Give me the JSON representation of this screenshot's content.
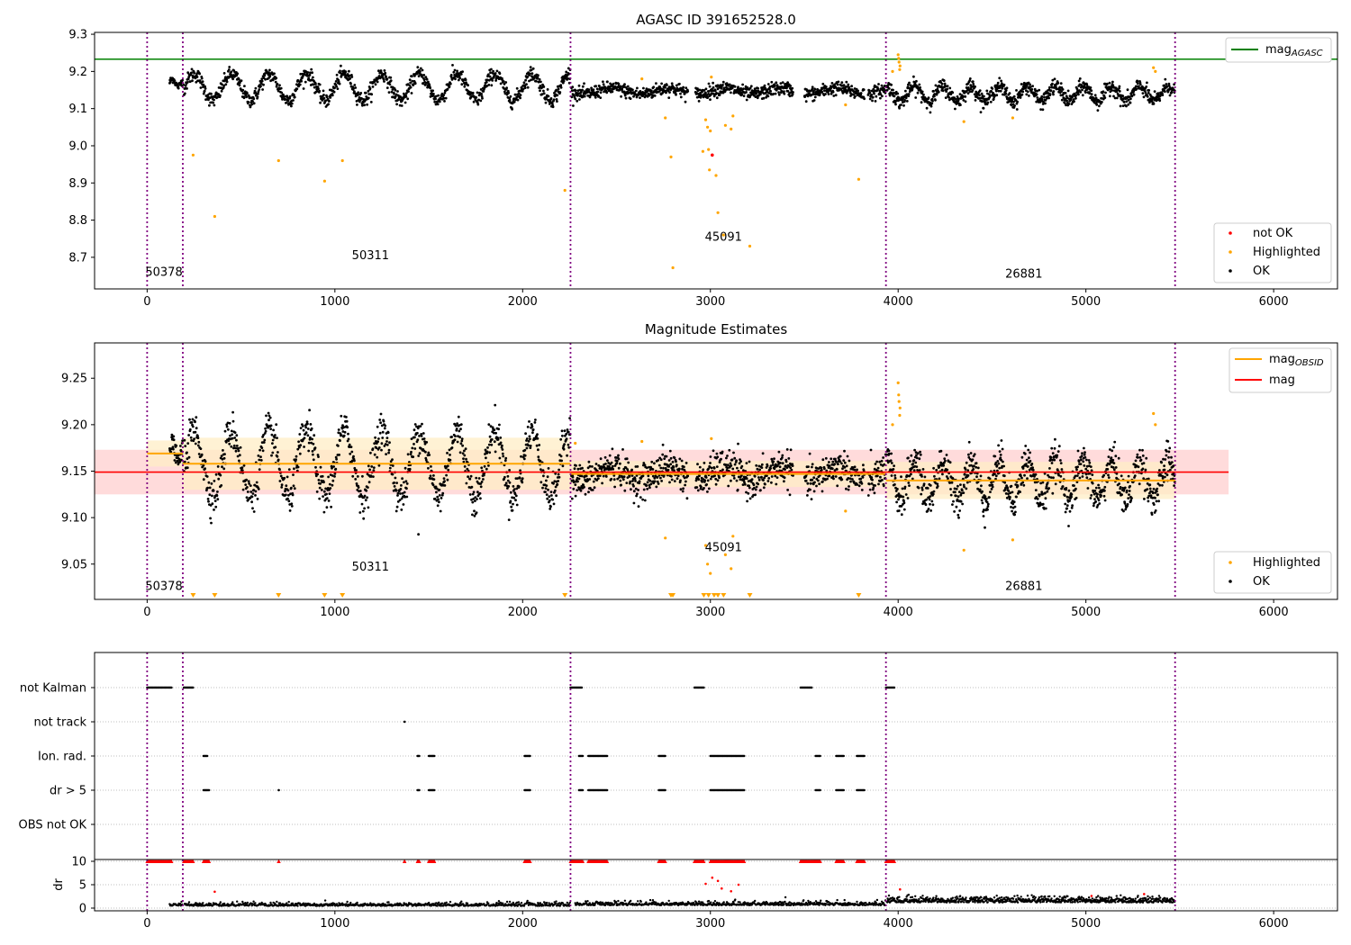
{
  "figure": {
    "title_top": "AGASC ID 391652528.0",
    "title_mid": "Magnitude Estimates",
    "colors": {
      "ok": "#000000",
      "highlighted": "#ffa500",
      "not_ok": "#ff0000",
      "agasc_line": "#008000",
      "mag_line": "#ff0000",
      "mag_obsid": "#ffa500",
      "obs_boundary": "#800080",
      "mag_band": "#ffcccc",
      "obsid_band": "#ffedc6"
    }
  },
  "chart_data": [
    {
      "type": "scatter",
      "title": "AGASC ID 391652528.0",
      "xlim": [
        -280,
        6340
      ],
      "ylim": [
        8.615,
        9.305
      ],
      "x_ticks": [
        "0",
        "1000",
        "2000",
        "3000",
        "4000",
        "5000",
        "6000"
      ],
      "y_ticks": [
        "8.7",
        "8.8",
        "8.9",
        "9.0",
        "9.1",
        "9.2",
        "9.3"
      ],
      "hline": {
        "name": "mag_AGASC",
        "value": 9.233
      },
      "obs_boundaries": [
        0,
        190,
        2255,
        3935,
        5475
      ],
      "obsid_labels": [
        {
          "text": "50378",
          "x": 0,
          "y": 8.65
        },
        {
          "text": "50311",
          "x": 1100,
          "y": 8.695
        },
        {
          "text": "45091",
          "x": 2980,
          "y": 8.745
        },
        {
          "text": "26881",
          "x": 4580,
          "y": 8.645
        }
      ],
      "segments_ok": [
        {
          "x0": 120,
          "x1": 190,
          "center": 9.17,
          "amp": 0.01,
          "period": 60,
          "noise": 0.005,
          "n": 40
        },
        {
          "x0": 195,
          "x1": 2255,
          "center": 9.158,
          "amp": 0.035,
          "period": 200,
          "noise": 0.01,
          "n": 1000
        },
        {
          "x0": 2260,
          "x1": 3935,
          "center": 9.147,
          "amp": 0.008,
          "period": 300,
          "noise": 0.009,
          "n": 900
        },
        {
          "x0": 3940,
          "x1": 5475,
          "center": 9.14,
          "amp": 0.02,
          "period": 150,
          "noise": 0.01,
          "n": 850
        }
      ],
      "gaps": [
        [
          2880,
          2920
        ],
        [
          3440,
          3500
        ],
        [
          3820,
          3840
        ]
      ],
      "highlighted": [
        {
          "x": 245,
          "y": 8.975
        },
        {
          "x": 360,
          "y": 8.81
        },
        {
          "x": 700,
          "y": 8.96
        },
        {
          "x": 945,
          "y": 8.905
        },
        {
          "x": 1040,
          "y": 8.96
        },
        {
          "x": 2225,
          "y": 8.88
        },
        {
          "x": 2635,
          "y": 9.18
        },
        {
          "x": 2760,
          "y": 9.075
        },
        {
          "x": 2790,
          "y": 8.97
        },
        {
          "x": 2800,
          "y": 8.672
        },
        {
          "x": 2960,
          "y": 8.985
        },
        {
          "x": 2975,
          "y": 9.07
        },
        {
          "x": 2985,
          "y": 9.05
        },
        {
          "x": 2990,
          "y": 8.99
        },
        {
          "x": 2995,
          "y": 8.935
        },
        {
          "x": 3000,
          "y": 9.04
        },
        {
          "x": 3005,
          "y": 9.185
        },
        {
          "x": 3030,
          "y": 8.92
        },
        {
          "x": 3040,
          "y": 8.82
        },
        {
          "x": 3070,
          "y": 8.76
        },
        {
          "x": 3080,
          "y": 9.055
        },
        {
          "x": 3110,
          "y": 9.045
        },
        {
          "x": 3120,
          "y": 9.08
        },
        {
          "x": 3210,
          "y": 8.73
        },
        {
          "x": 3720,
          "y": 9.11
        },
        {
          "x": 3790,
          "y": 8.91
        },
        {
          "x": 3970,
          "y": 9.2
        },
        {
          "x": 4000,
          "y": 9.245
        },
        {
          "x": 4003,
          "y": 9.235
        },
        {
          "x": 4005,
          "y": 9.225
        },
        {
          "x": 4008,
          "y": 9.205
        },
        {
          "x": 4010,
          "y": 9.215
        },
        {
          "x": 4350,
          "y": 9.065
        },
        {
          "x": 4610,
          "y": 9.075
        },
        {
          "x": 5360,
          "y": 9.21
        },
        {
          "x": 5370,
          "y": 9.2
        }
      ],
      "not_ok": [
        {
          "x": 3010,
          "y": 8.975
        }
      ],
      "legend_line": [
        "mag_AGASC"
      ],
      "legend_points": [
        "not OK",
        "Highlighted",
        "OK"
      ]
    },
    {
      "type": "scatter",
      "title": "Magnitude Estimates",
      "xlim": [
        -280,
        6340
      ],
      "ylim": [
        9.012,
        9.288
      ],
      "x_ticks": [
        "0",
        "1000",
        "2000",
        "3000",
        "4000",
        "5000",
        "6000"
      ],
      "y_ticks": [
        "9.05",
        "9.10",
        "9.15",
        "9.20",
        "9.25"
      ],
      "mag": {
        "value": 9.149,
        "band": [
          9.125,
          9.173
        ],
        "x_range": [
          -280,
          5760
        ]
      },
      "mag_obsid": [
        {
          "x0": 0,
          "x1": 190,
          "value": 9.169,
          "band": [
            9.155,
            9.183
          ]
        },
        {
          "x0": 190,
          "x1": 2255,
          "value": 9.158,
          "band": [
            9.13,
            9.186
          ]
        },
        {
          "x0": 2255,
          "x1": 3935,
          "value": 9.147,
          "band": [
            9.133,
            9.161
          ]
        },
        {
          "x0": 3935,
          "x1": 5475,
          "value": 9.14,
          "band": [
            9.12,
            9.16
          ]
        }
      ],
      "obs_boundaries": [
        0,
        190,
        2255,
        3935,
        5475
      ],
      "obsid_labels": [
        {
          "text": "50378",
          "x": 0,
          "y": 9.022
        },
        {
          "text": "50311",
          "x": 1100,
          "y": 9.043
        },
        {
          "text": "45091",
          "x": 2980,
          "y": 9.064
        },
        {
          "text": "26881",
          "x": 4580,
          "y": 9.022
        }
      ],
      "highlighted": [
        {
          "x": 2635,
          "y": 9.182
        },
        {
          "x": 2760,
          "y": 9.078
        },
        {
          "x": 2975,
          "y": 9.07
        },
        {
          "x": 2985,
          "y": 9.05
        },
        {
          "x": 3000,
          "y": 9.04
        },
        {
          "x": 3005,
          "y": 9.185
        },
        {
          "x": 3080,
          "y": 9.06
        },
        {
          "x": 3110,
          "y": 9.045
        },
        {
          "x": 3120,
          "y": 9.08
        },
        {
          "x": 3720,
          "y": 9.107
        },
        {
          "x": 3970,
          "y": 9.2
        },
        {
          "x": 4000,
          "y": 9.245
        },
        {
          "x": 4003,
          "y": 9.232
        },
        {
          "x": 4005,
          "y": 9.225
        },
        {
          "x": 4008,
          "y": 9.21
        },
        {
          "x": 4010,
          "y": 9.218
        },
        {
          "x": 4350,
          "y": 9.065
        },
        {
          "x": 4610,
          "y": 9.076
        },
        {
          "x": 5360,
          "y": 9.212
        },
        {
          "x": 5370,
          "y": 9.2
        },
        {
          "x": 2280,
          "y": 9.18
        }
      ],
      "below_axis_markers": [
        245,
        360,
        700,
        945,
        1040,
        2225,
        2790,
        2800,
        2965,
        2990,
        3020,
        3040,
        3070,
        3210,
        3790
      ],
      "legend_line": [
        "mag_OBSID",
        "mag"
      ],
      "legend_points": [
        "Highlighted",
        "OK"
      ]
    },
    {
      "type": "scatter",
      "categories": [
        "not Kalman",
        "not track",
        "Ion. rad.",
        "dr > 5",
        "OBS not OK"
      ],
      "xlim": [
        -280,
        6340
      ],
      "obs_boundaries": [
        0,
        190,
        2255,
        3935,
        5475
      ],
      "flag_runs": {
        "not Kalman": [
          [
            0,
            130
          ],
          [
            195,
            245
          ],
          [
            2255,
            2315
          ],
          [
            2915,
            2965
          ],
          [
            3480,
            3540
          ],
          [
            3935,
            3980
          ]
        ],
        "not track": [
          [
            1370,
            1372
          ]
        ],
        "Ion. rad.": [
          [
            300,
            320
          ],
          [
            1440,
            1450
          ],
          [
            1500,
            1530
          ],
          [
            2010,
            2040
          ],
          [
            2300,
            2320
          ],
          [
            2350,
            2450
          ],
          [
            2725,
            2760
          ],
          [
            3000,
            3180
          ],
          [
            3560,
            3585
          ],
          [
            3670,
            3710
          ],
          [
            3780,
            3820
          ]
        ],
        "dr > 5": [
          [
            300,
            330
          ],
          [
            700,
            702
          ],
          [
            1440,
            1450
          ],
          [
            1500,
            1530
          ],
          [
            2010,
            2040
          ],
          [
            2300,
            2320
          ],
          [
            2350,
            2450
          ],
          [
            2725,
            2760
          ],
          [
            3000,
            3180
          ],
          [
            3560,
            3585
          ],
          [
            3670,
            3710
          ],
          [
            3780,
            3820
          ]
        ],
        "OBS not OK": []
      }
    },
    {
      "type": "scatter",
      "ylabel": "dr",
      "xlim": [
        -280,
        6340
      ],
      "ylim": [
        -0.5,
        10.5
      ],
      "y_ticks": [
        "0",
        "5",
        "10"
      ],
      "obs_boundaries": [
        0,
        190,
        2255,
        3935,
        5475
      ],
      "segments_ok": [
        {
          "x0": 120,
          "x1": 190,
          "center": 0.5,
          "noise": 0.3,
          "n": 20
        },
        {
          "x0": 200,
          "x1": 2255,
          "center": 0.45,
          "noise": 0.35,
          "n": 700
        },
        {
          "x0": 2280,
          "x1": 3935,
          "center": 0.6,
          "noise": 0.4,
          "n": 600
        },
        {
          "x0": 3940,
          "x1": 5475,
          "center": 1.2,
          "noise": 0.6,
          "n": 700
        }
      ],
      "clipped_runs_at_10": [
        [
          0,
          130
        ],
        [
          195,
          245
        ],
        [
          300,
          330
        ],
        [
          700,
          702
        ],
        [
          1370,
          1372
        ],
        [
          1440,
          1450
        ],
        [
          1500,
          1530
        ],
        [
          2010,
          2040
        ],
        [
          2255,
          2320
        ],
        [
          2350,
          2450
        ],
        [
          2725,
          2760
        ],
        [
          2915,
          2965
        ],
        [
          3000,
          3180
        ],
        [
          3480,
          3585
        ],
        [
          3670,
          3710
        ],
        [
          3780,
          3820
        ],
        [
          3935,
          3980
        ]
      ],
      "red_points": [
        {
          "x": 360,
          "y": 3.5
        },
        {
          "x": 2975,
          "y": 5.2
        },
        {
          "x": 3010,
          "y": 6.5
        },
        {
          "x": 3040,
          "y": 5.8
        },
        {
          "x": 3060,
          "y": 4.2
        },
        {
          "x": 3110,
          "y": 3.6
        },
        {
          "x": 3150,
          "y": 5.0
        },
        {
          "x": 4010,
          "y": 4.0
        },
        {
          "x": 5030,
          "y": 2.6
        },
        {
          "x": 5310,
          "y": 3.0
        }
      ]
    }
  ]
}
